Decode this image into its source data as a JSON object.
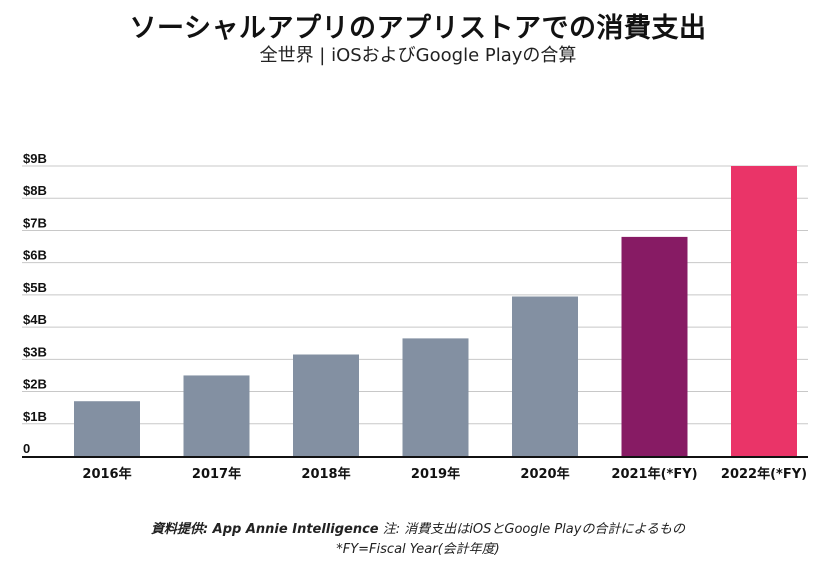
{
  "chart_data": {
    "type": "bar",
    "title": "ソーシャルアプリのアプリストアでの消費支出",
    "subtitle": "全世界 | iOSおよびGoogle Playの合算",
    "categories": [
      "2016年",
      "2017年",
      "2018年",
      "2019年",
      "2020年",
      "2021年(*FY)",
      "2022年(*FY)"
    ],
    "values": [
      1.7,
      2.5,
      3.15,
      3.65,
      4.95,
      6.8,
      9.0
    ],
    "value_unit": "billion USD",
    "yticks": [
      {
        "value": 0,
        "label": "0"
      },
      {
        "value": 1,
        "label": "$1B"
      },
      {
        "value": 2,
        "label": "$2B"
      },
      {
        "value": 3,
        "label": "$3B"
      },
      {
        "value": 4,
        "label": "$4B"
      },
      {
        "value": 5,
        "label": "$5B"
      },
      {
        "value": 6,
        "label": "$6B"
      },
      {
        "value": 7,
        "label": "$7B"
      },
      {
        "value": 8,
        "label": "$8B"
      },
      {
        "value": 9,
        "label": "$9B"
      }
    ],
    "ylim": [
      0,
      9
    ],
    "grid": true,
    "colors": [
      "#8390a2",
      "#8390a2",
      "#8390a2",
      "#8390a2",
      "#8390a2",
      "#871b64",
      "#ea3468"
    ]
  },
  "footer": {
    "source_label": "資料提供: App Annie Intelligence",
    "note": " 注: 消費支出はiOSとGoogle Playの合計によるもの",
    "fy_note": "*FY=Fiscal Year(会計年度)"
  }
}
